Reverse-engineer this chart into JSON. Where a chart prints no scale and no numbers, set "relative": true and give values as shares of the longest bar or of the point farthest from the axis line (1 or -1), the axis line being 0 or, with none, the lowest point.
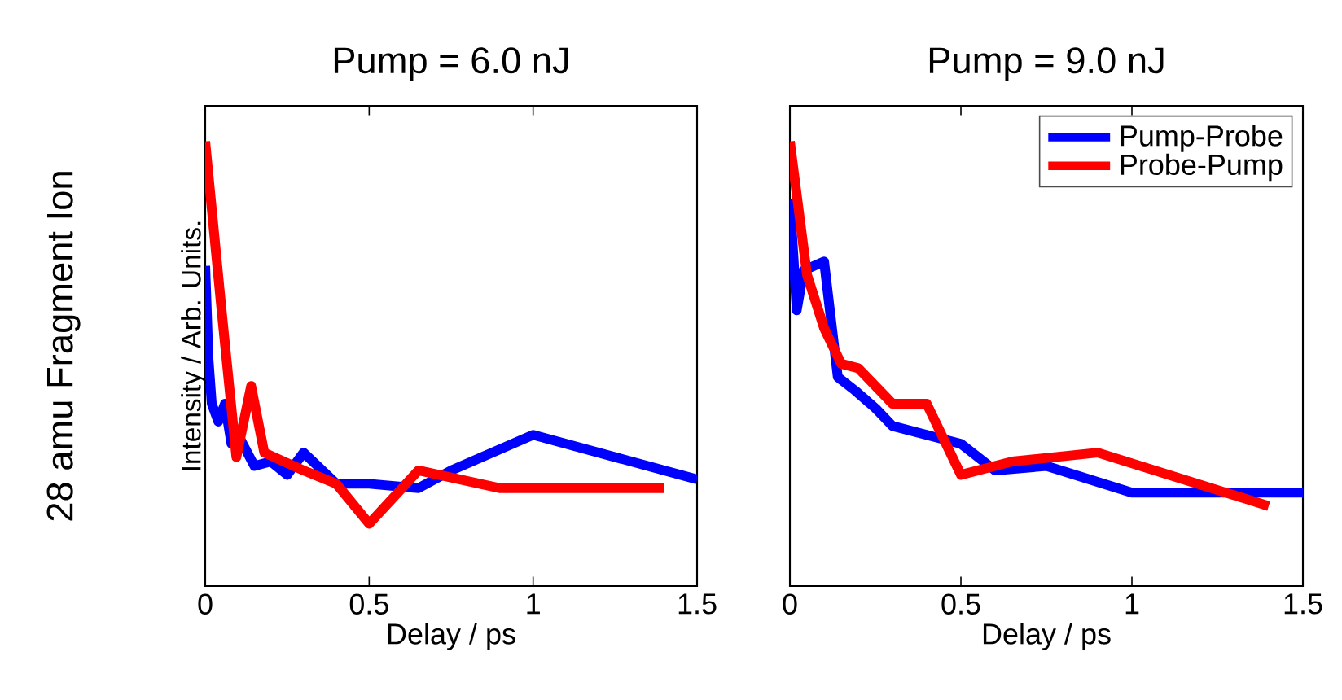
{
  "chart_data": [
    {
      "type": "line",
      "title": "Pump = 6.0 nJ",
      "xlabel": "Delay / ps",
      "ylabel": "Intensity / Arb. Units.",
      "annotations": [
        "28 amu Fragment Ion"
      ],
      "relative": true,
      "xlim": [
        0,
        1.5
      ],
      "xticks": [
        0,
        0.5,
        1,
        1.5
      ],
      "legend": false,
      "series": [
        {
          "color": "#0000ff",
          "x": [
            0,
            0.01,
            0.02,
            0.04,
            0.06,
            0.08,
            0.1,
            0.15,
            0.2,
            0.25,
            0.3,
            0.4,
            0.5,
            0.65,
            0.75,
            1.0,
            1.5
          ],
          "values": [
            0.72,
            0.51,
            0.41,
            0.37,
            0.41,
            0.32,
            0.34,
            0.27,
            0.28,
            0.25,
            0.3,
            0.23,
            0.23,
            0.22,
            0.26,
            0.34,
            0.24
          ]
        },
        {
          "color": "#ff0000",
          "x": [
            0,
            0.05,
            0.095,
            0.14,
            0.18,
            0.3,
            0.4,
            0.5,
            0.65,
            0.9,
            1.4
          ],
          "values": [
            1.0,
            0.62,
            0.29,
            0.45,
            0.3,
            0.26,
            0.23,
            0.14,
            0.26,
            0.22,
            0.22
          ]
        }
      ]
    },
    {
      "type": "line",
      "title": "Pump = 9.0 nJ",
      "xlabel": "Delay / ps",
      "relative": true,
      "xlim": [
        0,
        1.5
      ],
      "xticks": [
        0,
        0.5,
        1,
        1.5
      ],
      "legend": "top right",
      "series": [
        {
          "name": "Pump-Probe",
          "color": "#0000ff",
          "x": [
            0,
            0.02,
            0.04,
            0.1,
            0.14,
            0.19,
            0.25,
            0.3,
            0.4,
            0.5,
            0.6,
            0.75,
            1.0,
            1.5
          ],
          "values": [
            0.87,
            0.62,
            0.71,
            0.73,
            0.47,
            0.44,
            0.4,
            0.36,
            0.34,
            0.32,
            0.26,
            0.27,
            0.21,
            0.21
          ]
        },
        {
          "name": "Probe-Pump",
          "color": "#ff0000",
          "x": [
            0,
            0.05,
            0.1,
            0.15,
            0.2,
            0.3,
            0.4,
            0.5,
            0.65,
            0.9,
            1.4
          ],
          "values": [
            1.0,
            0.7,
            0.58,
            0.5,
            0.49,
            0.41,
            0.41,
            0.25,
            0.28,
            0.3,
            0.18
          ]
        }
      ]
    }
  ]
}
